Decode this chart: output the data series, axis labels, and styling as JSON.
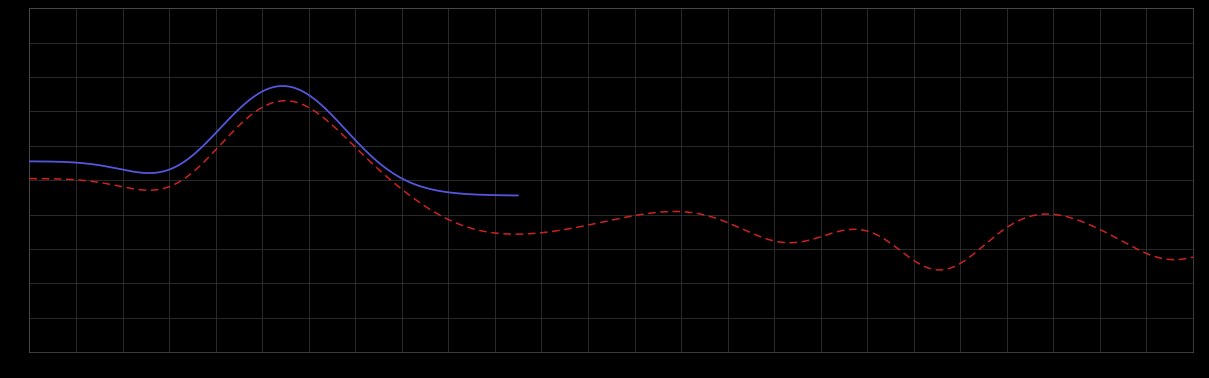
{
  "background_color": "#000000",
  "plot_bg_color": "#000000",
  "grid_color": "#3a3a3a",
  "blue_line_color": "#5555dd",
  "red_line_color": "#cc2222",
  "figsize": [
    12.09,
    3.78
  ],
  "dpi": 100,
  "xlim": [
    0,
    100
  ],
  "ylim": [
    0,
    10
  ],
  "grid_linewidth": 0.5,
  "blue_linewidth": 1.3,
  "red_linewidth": 1.1
}
